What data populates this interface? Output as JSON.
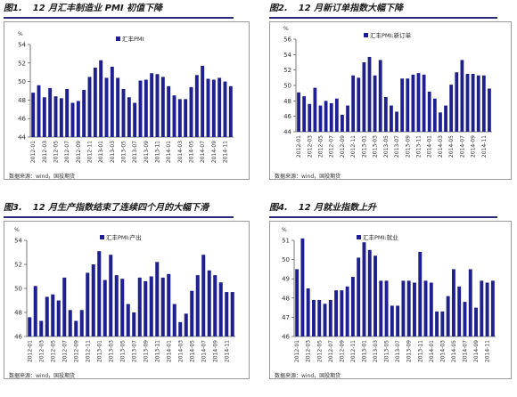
{
  "chart_data": [
    {
      "type": "bar",
      "figure_label": "图1.",
      "title": "12 月汇丰制造业 PMI 初值下降",
      "ylabel": "%",
      "legend": "汇丰PMI",
      "source": "数据来源：wind，国投期货",
      "ylim": [
        44,
        54
      ],
      "yticks": [
        44,
        46,
        48,
        50,
        52,
        54
      ],
      "tick_labels": [
        "2012-01",
        "2012-03",
        "2012-05",
        "2012-07",
        "2012-09",
        "2012-11",
        "2013-01",
        "2013-03",
        "2013-05",
        "2013-07",
        "2013-09",
        "2013-11",
        "2014-01",
        "2014-03",
        "2014-05",
        "2014-07",
        "2014-09",
        "2014-11"
      ],
      "values": [
        48.8,
        49.6,
        48.3,
        49.3,
        48.4,
        48.2,
        49.2,
        47.7,
        47.9,
        49.1,
        50.5,
        51.5,
        52.3,
        50.4,
        51.6,
        50.4,
        49.2,
        48.3,
        47.7,
        50.1,
        50.2,
        50.9,
        50.8,
        50.5,
        49.5,
        48.5,
        48.1,
        48.1,
        49.4,
        50.7,
        51.7,
        50.3,
        50.2,
        50.4,
        50.0,
        49.5
      ]
    },
    {
      "type": "bar",
      "figure_label": "图2.",
      "title": "12 月新订单指数大幅下降",
      "ylabel": "%",
      "legend": "汇丰PMI:新订单",
      "source": "数据来源：wind，国投期货",
      "ylim": [
        44,
        56
      ],
      "yticks": [
        44,
        46,
        48,
        50,
        52,
        54,
        56
      ],
      "tick_labels": [
        "2012-01",
        "2012-03",
        "2012-05",
        "2012-07",
        "2012-09",
        "2012-11",
        "2013-01",
        "2013-03",
        "2013-05",
        "2013-07",
        "2013-09",
        "2013-11",
        "2014-01",
        "2014-03",
        "2014-05",
        "2014-07",
        "2014-09",
        "2014-11"
      ],
      "values": [
        49.1,
        48.6,
        47.6,
        49.7,
        47.4,
        48.0,
        47.7,
        48.3,
        46.2,
        47.4,
        51.3,
        51.0,
        53.0,
        53.7,
        51.3,
        53.3,
        48.5,
        47.4,
        46.6,
        50.9,
        50.9,
        51.4,
        51.6,
        51.4,
        49.2,
        48.3,
        46.5,
        47.4,
        50.1,
        51.7,
        53.3,
        51.5,
        51.5,
        51.3,
        51.3,
        49.6
      ]
    },
    {
      "type": "bar",
      "figure_label": "图3.",
      "title": "12 月生产指数结束了连续四个月的大幅下滑",
      "ylabel": "%",
      "legend": "汇丰PMI:产出",
      "source": "数据来源：wind，国投期货",
      "ylim": [
        46,
        54
      ],
      "yticks": [
        46,
        48,
        50,
        52,
        54
      ],
      "tick_labels": [
        "2012-01",
        "2012-03",
        "2012-05",
        "2012-07",
        "2012-09",
        "2012-11",
        "2013-01",
        "2013-03",
        "2013-05",
        "2013-07",
        "2013-09",
        "2013-11",
        "2014-01",
        "2014-03",
        "2014-05",
        "2014-07",
        "2014-09",
        "2014-11"
      ],
      "values": [
        47.6,
        50.2,
        47.3,
        49.3,
        49.5,
        49.0,
        50.9,
        48.2,
        47.3,
        48.2,
        51.3,
        52.0,
        53.1,
        50.7,
        52.8,
        51.1,
        50.8,
        48.7,
        48.0,
        50.9,
        50.6,
        51.0,
        52.2,
        50.9,
        51.2,
        48.7,
        47.2,
        47.9,
        49.8,
        51.1,
        52.8,
        51.5,
        51.1,
        50.5,
        49.7,
        49.7
      ]
    },
    {
      "type": "bar",
      "figure_label": "图4.",
      "title": "12 月就业指数上升",
      "ylabel": "%",
      "legend": "汇丰PMI:就业",
      "source": "数据来源：wind，国投期货",
      "ylim": [
        46,
        51
      ],
      "yticks": [
        46,
        47,
        48,
        49,
        50,
        51
      ],
      "tick_labels": [
        "2012-01",
        "2012-03",
        "2012-05",
        "2012-07",
        "2012-09",
        "2012-11",
        "2013-01",
        "2013-03",
        "2013-05",
        "2013-07",
        "2013-09",
        "2013-11",
        "2014-01",
        "2014-03",
        "2014-05",
        "2014-07",
        "2014-09",
        "2014-11"
      ],
      "values": [
        49.5,
        51.1,
        48.5,
        47.9,
        47.9,
        47.7,
        47.9,
        48.4,
        48.4,
        48.6,
        49.1,
        50.1,
        50.9,
        50.5,
        50.2,
        48.9,
        48.9,
        47.6,
        47.6,
        48.9,
        48.9,
        48.8,
        50.4,
        48.9,
        48.8,
        47.3,
        47.3,
        48.1,
        49.5,
        48.6,
        47.8,
        49.5,
        47.5,
        48.9,
        48.8,
        48.9
      ]
    }
  ]
}
